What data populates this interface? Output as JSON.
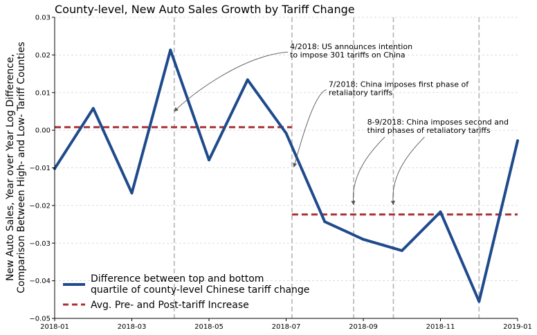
{
  "chart_data": {
    "type": "line",
    "title": "County-level, New Auto Sales Growth by Tariff Change",
    "ylabel_lines": [
      "New Auto Sales, Year over Year Log Difference,",
      "Comparison Between High- and Low- Tariff Counties"
    ],
    "xlabel": "",
    "ylim": [
      -0.05,
      0.03
    ],
    "yticks": [
      -0.05,
      -0.04,
      -0.03,
      -0.02,
      -0.01,
      0.0,
      0.01,
      0.02,
      0.03
    ],
    "ytick_labels": [
      "−0.05",
      "−0.04",
      "−0.03",
      "−0.02",
      "−0.01",
      "0.00",
      "0.01",
      "0.02",
      "0.03"
    ],
    "xlim_months": [
      0,
      12
    ],
    "xticks": [
      0,
      2,
      4,
      6,
      8,
      10,
      12
    ],
    "xtick_labels": [
      "2018-01",
      "2018-03",
      "2018-05",
      "2018-07",
      "2018-09",
      "2018-11",
      "2019-01"
    ],
    "series": [
      {
        "name": "Difference between top and bottom quartile of county-level Chinese tariff change",
        "legend_lines": [
          "Difference between top and bottom",
          "quartile of county-level Chinese tariff change"
        ],
        "color": "#1f4a8c",
        "x": [
          0,
          1,
          2,
          3,
          4,
          5,
          6,
          7,
          8,
          9,
          10,
          11,
          12
        ],
        "values": [
          -0.0102,
          0.0058,
          -0.0167,
          0.0213,
          -0.0079,
          0.0134,
          -0.0008,
          -0.0243,
          -0.029,
          -0.032,
          -0.0217,
          -0.0455,
          -0.0028
        ]
      }
    ],
    "averages": {
      "name": "Avg. Pre- and Post-tariff Increase",
      "legend_lines": [
        "Avg. Pre- and Post-tariff Increase"
      ],
      "color": "#a93237",
      "segments": [
        {
          "x_start": 0,
          "x_end": 6.15,
          "value": 0.0008
        },
        {
          "x_start": 6.15,
          "x_end": 12,
          "value": -0.0224
        }
      ]
    },
    "vlines": [
      3.1,
      6.15,
      7.75,
      8.78,
      11.0
    ],
    "annotations": [
      {
        "lines": [
          "4/2018: US announces intention",
          "to impose 301 tariffs on China"
        ],
        "text_x": 6.1,
        "text_y": 0.0215,
        "targets": [
          [
            3.1,
            0.005
          ]
        ]
      },
      {
        "lines": [
          "7/2018: China imposes first phase of",
          "retaliatory tariffs"
        ],
        "text_x": 7.1,
        "text_y": 0.0115,
        "targets": [
          [
            6.2,
            -0.0098
          ]
        ]
      },
      {
        "lines": [
          "8-9/2018: China imposes second and",
          "third phases of retaliatory tariffs"
        ],
        "text_x": 8.1,
        "text_y": 0.0015,
        "targets": [
          [
            7.75,
            -0.0198
          ],
          [
            8.78,
            -0.0198
          ]
        ]
      }
    ],
    "grid": true,
    "legend_position": "lower-left"
  }
}
